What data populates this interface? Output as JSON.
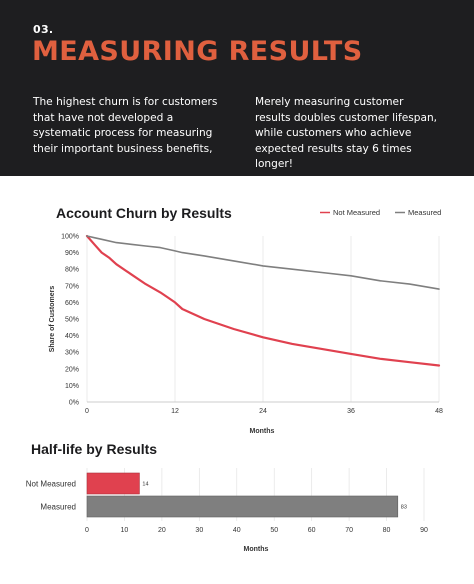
{
  "hero": {
    "number": "03.",
    "title": "MEASURING RESULTS",
    "left_text": "The highest churn is for customers that have not developed a systematic process for measuring their important business benefits,",
    "right_text": "Merely measuring customer results doubles customer lifespan, while customers who achieve expected results stay 6 times longer!"
  },
  "colors": {
    "accent": "#e0603f",
    "not_measured": "#e0414f",
    "measured": "#7f7f7f",
    "dark_bg": "#1e1e20"
  },
  "chart_data": [
    {
      "type": "line",
      "title": "Account Churn by Results",
      "xlabel": "Months",
      "ylabel": "Share of Customers",
      "xlim": [
        0,
        48
      ],
      "ylim": [
        0,
        100
      ],
      "x_ticks": [
        "0",
        "12",
        "24",
        "36",
        "48"
      ],
      "y_ticks": [
        "0%",
        "10%",
        "20%",
        "30%",
        "40%",
        "50%",
        "60%",
        "70%",
        "80%",
        "90%",
        "100%"
      ],
      "legend_position": "top-right",
      "grid": "vertical",
      "series": [
        {
          "name": "Not Measured",
          "x": [
            0,
            1,
            2,
            3,
            4,
            6,
            8,
            10,
            11,
            12,
            13,
            16,
            20,
            24,
            28,
            32,
            36,
            40,
            44,
            48
          ],
          "values": [
            100,
            95,
            90,
            87,
            83,
            77,
            71,
            66,
            63,
            60,
            56,
            50,
            44,
            39,
            35,
            32,
            29,
            26,
            24,
            22
          ]
        },
        {
          "name": "Measured",
          "x": [
            0,
            1,
            2,
            4,
            6,
            8,
            10,
            12,
            13,
            16,
            20,
            24,
            28,
            32,
            36,
            40,
            44,
            48
          ],
          "values": [
            100,
            99,
            98,
            96,
            95,
            94,
            93,
            91,
            90,
            88,
            85,
            82,
            80,
            78,
            76,
            73,
            71,
            68
          ]
        }
      ]
    },
    {
      "type": "bar",
      "orientation": "horizontal",
      "title": "Half-life by Results",
      "xlabel": "Months",
      "categories": [
        "Not Measured",
        "Measured"
      ],
      "values": [
        14,
        83
      ],
      "xlim": [
        0,
        90
      ],
      "x_ticks": [
        "0",
        "10",
        "20",
        "30",
        "40",
        "50",
        "60",
        "70",
        "80",
        "90"
      ],
      "grid": "vertical"
    }
  ]
}
